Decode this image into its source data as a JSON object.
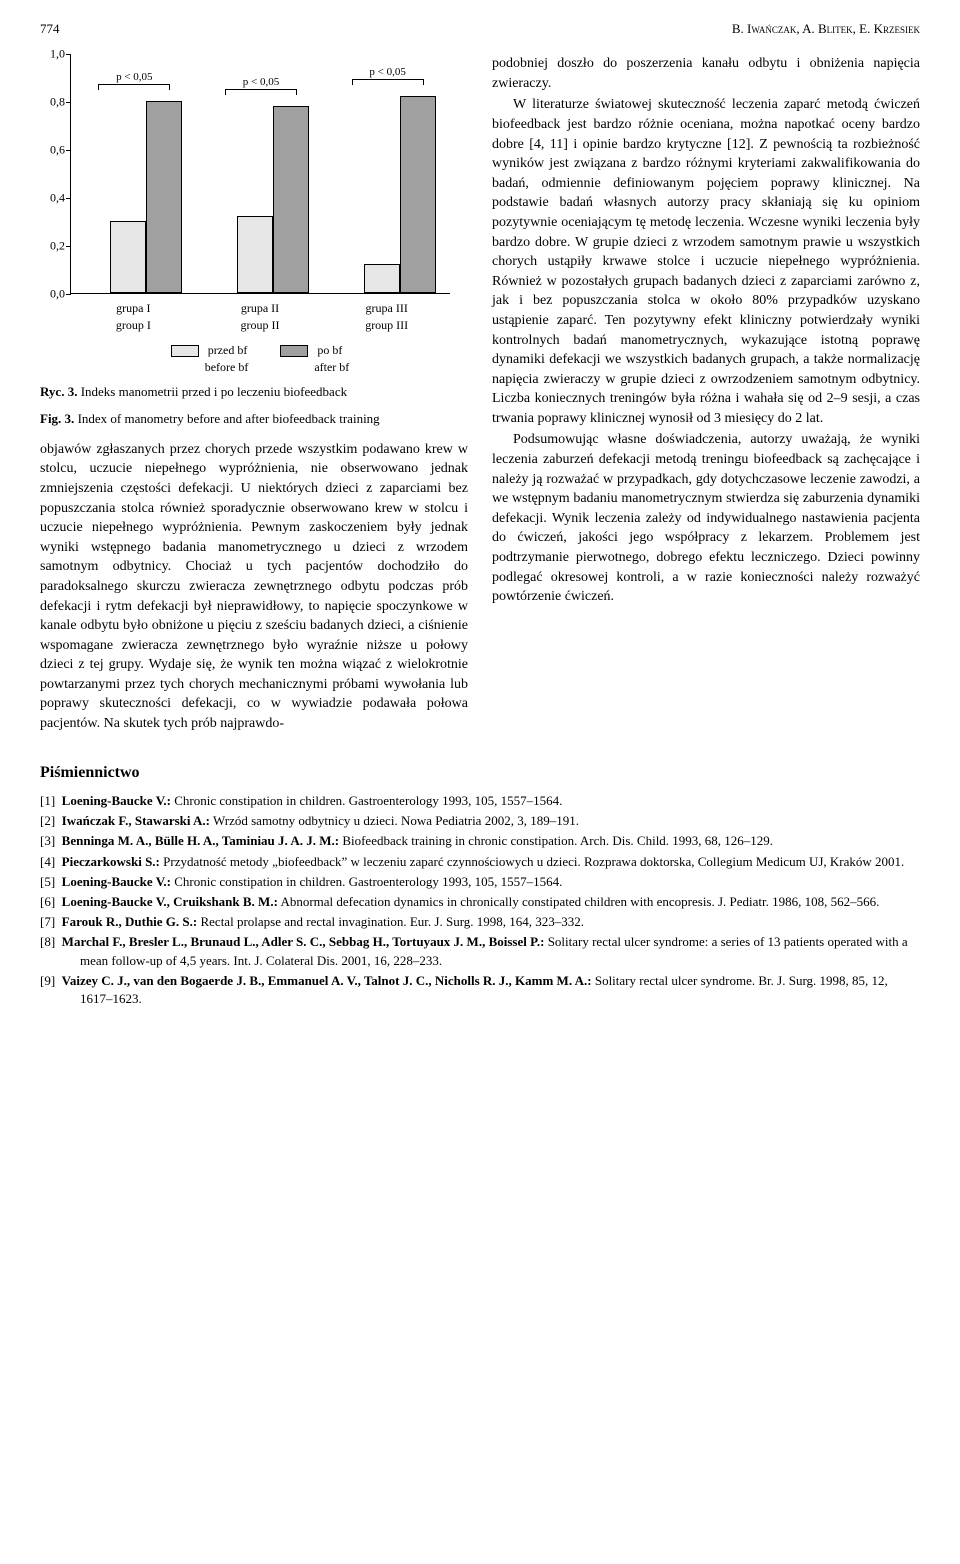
{
  "page_number": "774",
  "authors_header": "B. Iwańczak, A. Blitek, E. Krzesiek",
  "chart": {
    "type": "bar",
    "ylim": [
      0.0,
      1.0
    ],
    "ytick_step": 0.2,
    "yticks": [
      "0,0",
      "0,2",
      "0,4",
      "0,6",
      "0,8",
      "1,0"
    ],
    "groups": [
      {
        "label_pl": "grupa I",
        "label_en": "group I",
        "pre": 0.3,
        "post": 0.8,
        "p": "p < 0,05"
      },
      {
        "label_pl": "grupa II",
        "label_en": "group II",
        "pre": 0.32,
        "post": 0.78,
        "p": "p < 0,05"
      },
      {
        "label_pl": "grupa III",
        "label_en": "group III",
        "pre": 0.12,
        "post": 0.82,
        "p": "p < 0,05"
      }
    ],
    "bar_pre_color": "#e6e6e6",
    "bar_post_color": "#a0a0a0",
    "legend_pre_pl": "przed bf",
    "legend_pre_en": "before bf",
    "legend_post_pl": "po bf",
    "legend_post_en": "after bf",
    "caption_ryc_label": "Ryc. 3.",
    "caption_ryc_text": " Indeks manometrii przed i po leczeniu biofeedback",
    "caption_fig_label": "Fig. 3.",
    "caption_fig_text": " Index of manometry before and after biofeedback training"
  },
  "left_body": "objawów zgłaszanych przez chorych przede wszystkim podawano krew w stolcu, uczucie niepełnego wypróżnienia, nie obserwowano jednak zmniejszenia częstości defekacji. U niektórych dzieci z zaparciami bez popuszczania stolca również sporadycznie obserwowano krew w stolcu i uczucie niepełnego wypróżnienia. Pewnym zaskoczeniem były jednak wyniki wstępnego badania manometrycznego u dzieci z wrzodem samotnym odbytnicy. Chociaż u tych pacjentów dochodziło do paradoksalnego skurczu zwieracza zewnętrznego odbytu podczas prób defekacji i rytm defekacji był nieprawidłowy, to napięcie spoczynkowe w kanale odbytu było obniżone u pięciu z sześciu badanych dzieci, a ciśnienie wspomagane zwieracza zewnętrznego było wyraźnie niższe u połowy dzieci z tej grupy. Wydaje się, że wynik ten można wiązać z wielokrotnie powtarzanymi przez tych chorych mechanicznymi próbami wywołania lub poprawy skuteczności defekacji, co w wywiadzie podawała połowa pacjentów. Na skutek tych prób najprawdo-",
  "right_body_p1": "podobniej doszło do poszerzenia kanału odbytu i obniżenia napięcia zwieraczy.",
  "right_body_p2": "W literaturze światowej skuteczność leczenia zaparć metodą ćwiczeń biofeedback jest bardzo różnie oceniana, można napotkać oceny bardzo dobre [4, 11] i opinie bardzo krytyczne [12]. Z pewnością ta rozbieżność wyników jest związana z bardzo różnymi kryteriami zakwalifikowania do badań, odmiennie definiowanym pojęciem poprawy klinicznej. Na podstawie badań własnych autorzy pracy skłaniają się ku opiniom pozytywnie oceniającym tę metodę leczenia. Wczesne wyniki leczenia były bardzo dobre. W grupie dzieci z wrzodem samotnym prawie u wszystkich chorych ustąpiły krwawe stolce i uczucie niepełnego wypróżnienia. Również w pozostałych grupach badanych dzieci z zaparciami zarówno z, jak i bez popuszczania stolca w około 80% przypadków uzyskano ustąpienie zaparć. Ten pozytywny efekt kliniczny potwierdzały wyniki kontrolnych badań manometrycznych, wykazujące istotną poprawę dynamiki defekacji we wszystkich badanych grupach, a także normalizację napięcia zwieraczy w grupie dzieci z owrzodzeniem samotnym odbytnicy. Liczba koniecznych treningów była różna i wahała się od 2–9 sesji, a czas trwania poprawy klinicznej wynosił od 3 miesięcy do 2 lat.",
  "right_body_p3": "Podsumowując własne doświadczenia, autorzy uważają, że wyniki leczenia zaburzeń defekacji metodą treningu biofeedback są zachęcające i należy ją rozważać w przypadkach, gdy dotychczasowe leczenie zawodzi, a we wstępnym badaniu manometrycznym stwierdza się zaburzenia dynamiki defekacji. Wynik leczenia zależy od indywidualnego nastawienia pacjenta do ćwiczeń, jakości jego współpracy z lekarzem. Problemem jest podtrzymanie pierwotnego, dobrego efektu leczniczego. Dzieci powinny podlegać okresowej kontroli, a w razie konieczności należy rozważyć powtórzenie ćwiczeń.",
  "refs_heading": "Piśmiennictwo",
  "references": [
    {
      "n": "[1]",
      "t": "Loening-Baucke V.: Chronic constipation in children. Gastroenterology 1993, 105, 1557–1564."
    },
    {
      "n": "[2]",
      "t": "Iwańczak F., Stawarski A.: Wrzód samotny odbytnicy u dzieci. Nowa Pediatria 2002, 3, 189–191."
    },
    {
      "n": "[3]",
      "t": "Benninga M. A., Bülle H. A., Taminiau J. A. J. M.: Biofeedback training in chronic constipation. Arch. Dis. Child. 1993, 68, 126–129."
    },
    {
      "n": "[4]",
      "t": "Pieczarkowski S.: Przydatność metody „biofeedback” w leczeniu zaparć czynnościowych u dzieci. Rozprawa doktorska, Collegium Medicum UJ, Kraków 2001."
    },
    {
      "n": "[5]",
      "t": "Loening-Baucke V.: Chronic constipation in children. Gastroenterology 1993, 105, 1557–1564."
    },
    {
      "n": "[6]",
      "t": "Loening-Baucke V., Cruikshank B. M.: Abnormal defecation dynamics in chronically constipated children with encopresis. J. Pediatr. 1986, 108, 562–566."
    },
    {
      "n": "[7]",
      "t": "Farouk R., Duthie G. S.: Rectal prolapse and rectal invagination. Eur. J. Surg. 1998, 164, 323–332."
    },
    {
      "n": "[8]",
      "t": "Marchal F., Bresler L., Brunaud L., Adler S. C., Sebbag H., Tortuyaux J. M., Boissel P.: Solitary rectal ulcer syndrome: a series of 13 patients operated with a mean follow-up of 4,5 years. Int. J. Colateral Dis. 2001, 16, 228–233."
    },
    {
      "n": "[9]",
      "t": "Vaizey C. J., van den Bogaerde J. B., Emmanuel A. V., Talnot J. C., Nicholls R. J., Kamm M. A.: Solitary rectal ulcer syndrome. Br. J. Surg. 1998, 85, 12, 1617–1623."
    }
  ]
}
